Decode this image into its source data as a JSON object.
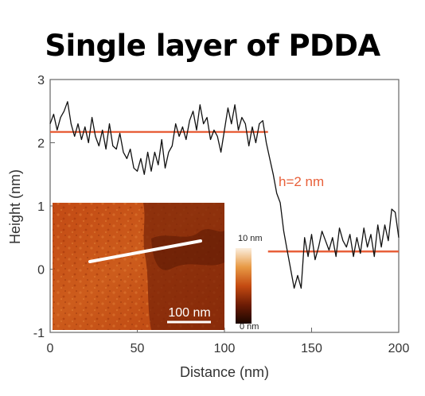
{
  "chart_data": {
    "type": "line",
    "title": "Single layer of PDDA",
    "xlabel": "Distance (nm)",
    "ylabel": "Height (nm)",
    "xlim": [
      0,
      200
    ],
    "ylim": [
      -1,
      3
    ],
    "xticks": [
      "0",
      "50",
      "100",
      "150",
      "200"
    ],
    "yticks": [
      "-1",
      "0",
      "1",
      "2",
      "3"
    ],
    "grid": false,
    "series": [
      {
        "color": "#111111",
        "x": [
          0,
          2,
          4,
          6,
          8,
          10,
          12,
          14,
          16,
          18,
          20,
          22,
          24,
          26,
          28,
          30,
          32,
          34,
          36,
          38,
          40,
          42,
          44,
          46,
          48,
          50,
          52,
          54,
          56,
          58,
          60,
          62,
          64,
          66,
          68,
          70,
          72,
          74,
          76,
          78,
          80,
          82,
          84,
          86,
          88,
          90,
          92,
          94,
          96,
          98,
          100,
          102,
          104,
          106,
          108,
          110,
          112,
          114,
          116,
          118,
          120,
          122,
          124,
          126,
          128,
          130,
          132,
          134,
          136,
          138,
          140,
          142,
          144,
          146,
          148,
          150,
          152,
          154,
          156,
          158,
          160,
          162,
          164,
          166,
          168,
          170,
          172,
          174,
          176,
          178,
          180,
          182,
          184,
          186,
          188,
          190,
          192,
          194,
          196,
          198,
          200
        ],
        "y": [
          2.3,
          2.45,
          2.2,
          2.4,
          2.5,
          2.65,
          2.3,
          2.1,
          2.3,
          2.05,
          2.25,
          2.0,
          2.4,
          2.1,
          1.95,
          2.2,
          1.9,
          2.3,
          1.95,
          1.9,
          2.15,
          1.85,
          1.75,
          1.9,
          1.6,
          1.55,
          1.75,
          1.5,
          1.85,
          1.55,
          1.85,
          1.65,
          2.05,
          1.6,
          1.85,
          1.95,
          2.3,
          2.1,
          2.25,
          2.05,
          2.35,
          2.5,
          2.2,
          2.6,
          2.3,
          2.4,
          2.05,
          2.2,
          2.1,
          1.85,
          2.2,
          2.55,
          2.3,
          2.6,
          2.2,
          2.4,
          2.3,
          1.95,
          2.25,
          2.0,
          2.3,
          2.35,
          2.0,
          1.75,
          1.5,
          1.2,
          1.05,
          0.6,
          0.3,
          0.0,
          -0.3,
          -0.1,
          -0.3,
          0.5,
          0.2,
          0.55,
          0.15,
          0.35,
          0.6,
          0.45,
          0.3,
          0.5,
          0.2,
          0.65,
          0.45,
          0.35,
          0.55,
          0.2,
          0.5,
          0.25,
          0.65,
          0.35,
          0.55,
          0.2,
          0.7,
          0.35,
          0.7,
          0.45,
          0.95,
          0.9,
          0.5
        ]
      }
    ],
    "reference_lines": [
      {
        "y": 2.17,
        "x": [
          0,
          125
        ],
        "color": "#e8603a"
      },
      {
        "y": 0.28,
        "x": [
          125,
          200
        ],
        "color": "#e8603a"
      }
    ],
    "annotations": [
      {
        "text": "h=2 nm",
        "color": "#e8603a"
      }
    ],
    "inset": {
      "type": "afm-image",
      "scale_bar_label": "100 nm",
      "colorbar_max_label": "10 nm",
      "colorbar_min_label": "0 nm",
      "colormap": [
        "#1a0600",
        "#6e1c05",
        "#c44b12",
        "#e89a45",
        "#fbeede"
      ]
    }
  }
}
